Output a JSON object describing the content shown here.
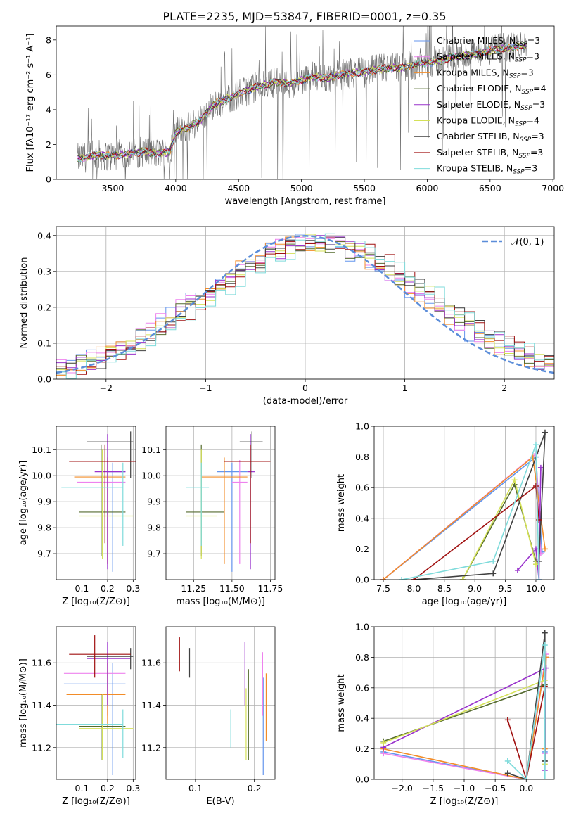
{
  "figure_title": "PLATE=2235, MJD=53847, FIBERID=0001, z=0.35",
  "legend_entries": [
    {
      "main": "Chabrier MILES, N",
      "sub": "SSP",
      "tail": "=3",
      "color": "#6495ED"
    },
    {
      "main": "Salpeter MILES, N",
      "sub": "SSP",
      "tail": "=3",
      "color": "#EE82EE"
    },
    {
      "main": "Kroupa MILES, N",
      "sub": "SSP",
      "tail": "=3",
      "color": "#F28C28"
    },
    {
      "main": "Chabrier ELODIE, N",
      "sub": "SSP",
      "tail": "=4",
      "color": "#556B2F"
    },
    {
      "main": "Salpeter ELODIE, N",
      "sub": "SSP",
      "tail": "=3",
      "color": "#9932CC"
    },
    {
      "main": "Kroupa ELODIE, N",
      "sub": "SSP",
      "tail": "=4",
      "color": "#D4E157"
    },
    {
      "main": "Chabrier STELIB, N",
      "sub": "SSP",
      "tail": "=3",
      "color": "#404040"
    },
    {
      "main": "Salpeter STELIB, N",
      "sub": "SSP",
      "tail": "=3",
      "color": "#A01010"
    },
    {
      "main": "Kroupa STELIB, N",
      "sub": "SSP",
      "tail": "=3",
      "color": "#7FDBDB"
    }
  ],
  "gauss_legend": "𝒩(0, 1)",
  "chart_data": [
    {
      "id": "spectrum",
      "type": "line",
      "xlabel": "wavelength [Angstrom, rest frame]",
      "ylabel": "Flux [fλ10⁻¹⁷ erg cm⁻² s⁻¹ A⁻¹]",
      "xlim": [
        3050,
        7010
      ],
      "ylim": [
        0,
        8.8
      ],
      "xticks": [
        3500,
        4000,
        4500,
        5000,
        5500,
        6000,
        6500,
        7000
      ],
      "yticks": [
        0,
        2,
        4,
        6,
        8
      ],
      "grid": false,
      "model_curve": {
        "x": [
          3220,
          3300,
          3400,
          3480,
          3550,
          3650,
          3750,
          3850,
          3950,
          4000,
          4100,
          4200,
          4300,
          4400,
          4500,
          4600,
          4700,
          4800,
          4900,
          5000,
          5100,
          5200,
          5300,
          5400,
          5500,
          5600,
          5700,
          5800,
          5900,
          6000,
          6100,
          6200,
          6300,
          6400,
          6500,
          6600,
          6700,
          6790
        ],
        "y": [
          1.2,
          1.3,
          1.4,
          1.35,
          1.4,
          1.5,
          1.6,
          1.5,
          1.55,
          2.7,
          3.0,
          3.4,
          4.3,
          4.6,
          4.9,
          5.2,
          5.4,
          5.6,
          5.5,
          5.7,
          5.9,
          5.8,
          6.0,
          6.1,
          6.15,
          6.3,
          6.4,
          6.4,
          6.6,
          6.7,
          6.8,
          7.0,
          7.1,
          7.2,
          7.4,
          7.5,
          7.6,
          7.7
        ]
      },
      "legend_position": "right"
    },
    {
      "id": "residuals",
      "type": "line",
      "xlabel": "(data-model)/error",
      "ylabel": "Normed distribution",
      "xlim": [
        -2.5,
        2.5
      ],
      "ylim": [
        0,
        0.425
      ],
      "xticks": [
        -2,
        -1,
        0,
        1,
        2
      ],
      "yticks": [
        0.0,
        0.1,
        0.2,
        0.3,
        0.4
      ],
      "grid": true,
      "legend_position": "top-right"
    },
    {
      "id": "age-vs-Z",
      "type": "scatter",
      "xlabel": "Z [log₁₀(Z/Z⊙)]",
      "ylabel": "age  [log₁₀(age/yr)]",
      "xlim": [
        0.0,
        0.31
      ],
      "ylim": [
        9.6,
        10.19
      ],
      "xticks": [
        0.1,
        0.2,
        0.3
      ],
      "yticks": [
        9.7,
        9.8,
        9.9,
        10.0,
        10.1
      ],
      "grid": true,
      "points": [
        {
          "s": 0,
          "x": 0.22,
          "y": 10.015,
          "xerr": [
            0.2,
            0.27
          ],
          "yerr": [
            9.63,
            10.05
          ]
        },
        {
          "s": 1,
          "x": 0.2,
          "y": 9.975,
          "xerr": [
            0.08,
            0.27
          ],
          "yerr": [
            9.66,
            10.06
          ]
        },
        {
          "s": 2,
          "x": 0.2,
          "y": 9.995,
          "xerr": [
            0.07,
            0.27
          ],
          "yerr": [
            9.66,
            10.07
          ]
        },
        {
          "s": 3,
          "x": 0.175,
          "y": 9.86,
          "xerr": [
            0.09,
            0.27
          ],
          "yerr": [
            9.69,
            10.12
          ]
        },
        {
          "s": 4,
          "x": 0.2,
          "y": 10.015,
          "xerr": [
            0.15,
            0.27
          ],
          "yerr": [
            9.64,
            10.16
          ]
        },
        {
          "s": 5,
          "x": 0.18,
          "y": 9.845,
          "xerr": [
            0.09,
            0.3
          ],
          "yerr": [
            9.68,
            10.1
          ]
        },
        {
          "s": 6,
          "x": 0.29,
          "y": 10.13,
          "xerr": [
            0.12,
            0.3
          ],
          "yerr": [
            9.99,
            10.17
          ]
        },
        {
          "s": 7,
          "x": 0.19,
          "y": 10.055,
          "xerr": [
            0.05,
            0.31
          ],
          "yerr": [
            9.74,
            10.12
          ]
        },
        {
          "s": 8,
          "x": 0.26,
          "y": 9.955,
          "xerr": [
            0.02,
            0.26
          ],
          "yerr": [
            9.73,
            10.05
          ]
        }
      ]
    },
    {
      "id": "age-vs-mass",
      "type": "scatter",
      "xlabel": "mass [log₁₀(M/M⊙)]",
      "ylabel": "",
      "xlim": [
        11.07,
        11.78
      ],
      "ylim": [
        9.6,
        10.19
      ],
      "xticks": [
        11.25,
        11.5,
        11.75
      ],
      "yticks": [
        9.7,
        9.8,
        9.9,
        10.0,
        10.1
      ],
      "grid": true,
      "points": [
        {
          "s": 0,
          "x": 11.5,
          "y": 10.015,
          "xerr": [
            11.4,
            11.6
          ],
          "yerr": [
            9.63,
            10.05
          ]
        },
        {
          "s": 1,
          "x": 11.55,
          "y": 9.975,
          "xerr": [
            11.5,
            11.6
          ],
          "yerr": [
            9.66,
            10.06
          ]
        },
        {
          "s": 2,
          "x": 11.45,
          "y": 9.995,
          "xerr": [
            11.3,
            11.6
          ],
          "yerr": [
            9.66,
            10.07
          ]
        },
        {
          "s": 3,
          "x": 11.3,
          "y": 9.86,
          "xerr": [
            11.2,
            11.45
          ],
          "yerr": [
            9.69,
            10.12
          ]
        },
        {
          "s": 4,
          "x": 11.62,
          "y": 10.015,
          "xerr": [
            11.6,
            11.65
          ],
          "yerr": [
            9.64,
            10.16
          ]
        },
        {
          "s": 5,
          "x": 11.3,
          "y": 9.845,
          "xerr": [
            11.2,
            11.4
          ],
          "yerr": [
            9.68,
            10.1
          ]
        },
        {
          "s": 6,
          "x": 11.63,
          "y": 10.13,
          "xerr": [
            11.55,
            11.7
          ],
          "yerr": [
            9.99,
            10.17
          ]
        },
        {
          "s": 7,
          "x": 11.62,
          "y": 10.055,
          "xerr": [
            11.45,
            11.75
          ],
          "yerr": [
            9.74,
            10.12
          ]
        },
        {
          "s": 8,
          "x": 11.3,
          "y": 9.955,
          "xerr": [
            11.2,
            11.35
          ],
          "yerr": [
            9.73,
            10.05
          ]
        }
      ]
    },
    {
      "id": "weight-vs-age",
      "type": "line",
      "xlabel": "age  [log₁₀(age/yr)]",
      "ylabel": "mass weight",
      "xlim": [
        7.35,
        10.3
      ],
      "ylim": [
        0,
        1.0
      ],
      "xticks": [
        7.5,
        8.0,
        8.5,
        9.0,
        9.5,
        10.0
      ],
      "yticks": [
        0.0,
        0.2,
        0.4,
        0.6,
        0.8,
        1.0
      ],
      "grid": true,
      "series": [
        {
          "s": 0,
          "x": [
            7.5,
            10.0,
            10.1
          ],
          "y": [
            0.0,
            0.8,
            0.18
          ]
        },
        {
          "s": 1,
          "x": [
            7.5,
            10.0,
            10.08
          ],
          "y": [
            0.0,
            0.82,
            0.17
          ]
        },
        {
          "s": 2,
          "x": [
            7.5,
            9.95,
            10.15
          ],
          "y": [
            0.0,
            0.8,
            0.2
          ]
        },
        {
          "s": 3,
          "x": [
            8.8,
            9.65,
            10.0
          ],
          "y": [
            0.0,
            0.62,
            0.12
          ]
        },
        {
          "s": 4,
          "x": [
            9.7,
            10.0,
            10.05,
            10.08
          ],
          "y": [
            0.06,
            0.2,
            0.0,
            0.73
          ]
        },
        {
          "s": 5,
          "x": [
            8.8,
            9.65,
            10.0
          ],
          "y": [
            0.0,
            0.65,
            0.1
          ]
        },
        {
          "s": 6,
          "x": [
            8.0,
            9.3,
            10.15,
            10.05
          ],
          "y": [
            0.0,
            0.04,
            0.96,
            0.12
          ]
        },
        {
          "s": 7,
          "x": [
            8.0,
            10.0,
            10.05
          ],
          "y": [
            0.0,
            0.61,
            0.39
          ]
        },
        {
          "s": 8,
          "x": [
            7.8,
            9.3,
            10.0,
            10.05
          ],
          "y": [
            0.0,
            0.12,
            0.88,
            0.0
          ]
        }
      ]
    },
    {
      "id": "mass-vs-Z",
      "type": "scatter",
      "xlabel": "Z [log₁₀(Z/Z⊙)]",
      "ylabel": "mass [log₁₀(M/M⊙)]",
      "xlim": [
        0.0,
        0.31
      ],
      "ylim": [
        11.05,
        11.77
      ],
      "xticks": [
        0.1,
        0.2,
        0.3
      ],
      "yticks": [
        11.2,
        11.4,
        11.6
      ],
      "grid": true,
      "points": [
        {
          "s": 0,
          "x": 0.22,
          "y": 11.5,
          "xerr": [
            0.03,
            0.27
          ],
          "yerr": [
            11.07,
            11.6
          ]
        },
        {
          "s": 1,
          "x": 0.2,
          "y": 11.55,
          "xerr": [
            0.03,
            0.27
          ],
          "yerr": [
            11.35,
            11.65
          ]
        },
        {
          "s": 2,
          "x": 0.2,
          "y": 11.45,
          "xerr": [
            0.04,
            0.27
          ],
          "yerr": [
            11.3,
            11.6
          ]
        },
        {
          "s": 3,
          "x": 0.175,
          "y": 11.3,
          "xerr": [
            0.09,
            0.27
          ],
          "yerr": [
            11.14,
            11.45
          ]
        },
        {
          "s": 4,
          "x": 0.2,
          "y": 11.62,
          "xerr": [
            0.12,
            0.29
          ],
          "yerr": [
            11.4,
            11.7
          ]
        },
        {
          "s": 5,
          "x": 0.18,
          "y": 11.29,
          "xerr": [
            0.09,
            0.3
          ],
          "yerr": [
            11.14,
            11.45
          ]
        },
        {
          "s": 6,
          "x": 0.29,
          "y": 11.63,
          "xerr": [
            0.12,
            0.3
          ],
          "yerr": [
            11.57,
            11.67
          ]
        },
        {
          "s": 7,
          "x": 0.15,
          "y": 11.64,
          "xerr": [
            0.05,
            0.29
          ],
          "yerr": [
            11.53,
            11.73
          ]
        },
        {
          "s": 8,
          "x": 0.26,
          "y": 11.31,
          "xerr": [
            0.0,
            0.26
          ],
          "yerr": [
            11.15,
            11.38
          ]
        }
      ]
    },
    {
      "id": "EBV",
      "type": "scatter",
      "xlabel": "E(B-V)",
      "ylabel": "",
      "xlim": [
        0.05,
        0.235
      ],
      "ylim": [
        11.05,
        11.77
      ],
      "xticks": [
        0.1,
        0.2
      ],
      "yticks": [
        11.2,
        11.4,
        11.6
      ],
      "grid": true,
      "points": [
        {
          "s": 0,
          "x": 0.215,
          "y": 11.5,
          "yerr": [
            11.07,
            11.53
          ]
        },
        {
          "s": 1,
          "x": 0.214,
          "y": 11.55,
          "yerr": [
            11.35,
            11.65
          ]
        },
        {
          "s": 2,
          "x": 0.22,
          "y": 11.45,
          "yerr": [
            11.23,
            11.55
          ]
        },
        {
          "s": 3,
          "x": 0.19,
          "y": 11.3,
          "yerr": [
            11.14,
            11.57
          ]
        },
        {
          "s": 4,
          "x": 0.184,
          "y": 11.62,
          "yerr": [
            11.4,
            11.7
          ]
        },
        {
          "s": 5,
          "x": 0.186,
          "y": 11.29,
          "yerr": [
            11.14,
            11.48
          ]
        },
        {
          "s": 6,
          "x": 0.09,
          "y": 11.63,
          "yerr": [
            11.53,
            11.67
          ]
        },
        {
          "s": 7,
          "x": 0.073,
          "y": 11.64,
          "yerr": [
            11.56,
            11.72
          ]
        },
        {
          "s": 8,
          "x": 0.16,
          "y": 11.31,
          "yerr": [
            11.2,
            11.38
          ]
        }
      ]
    },
    {
      "id": "weight-vs-Z",
      "type": "line",
      "xlabel": "Z [log₁₀(Z/Z⊙)]",
      "ylabel": "mass weight",
      "xlim": [
        -2.45,
        0.45
      ],
      "ylim": [
        0,
        1.0
      ],
      "xticks": [
        -2.0,
        -1.5,
        -1.0,
        -0.5,
        0.0
      ],
      "yticks": [
        0.0,
        0.2,
        0.4,
        0.6,
        0.8,
        1.0
      ],
      "grid": true,
      "series": [
        {
          "s": 0,
          "x": [
            -2.3,
            0.0,
            0.32,
            0.3
          ],
          "y": [
            0.18,
            0.0,
            0.8,
            0.18
          ]
        },
        {
          "s": 1,
          "x": [
            -2.3,
            0.0,
            0.32,
            0.3
          ],
          "y": [
            0.17,
            0.0,
            0.82,
            0.17
          ]
        },
        {
          "s": 2,
          "x": [
            -2.3,
            0.0,
            0.32,
            0.3
          ],
          "y": [
            0.2,
            0.0,
            0.8,
            0.2
          ]
        },
        {
          "s": 3,
          "x": [
            -2.3,
            0.3,
            0.3
          ],
          "y": [
            0.25,
            0.62,
            0.12
          ]
        },
        {
          "s": 4,
          "x": [
            -2.3,
            0.32,
            0.3
          ],
          "y": [
            0.21,
            0.73,
            0.06
          ]
        },
        {
          "s": 5,
          "x": [
            -2.3,
            0.3,
            0.3
          ],
          "y": [
            0.24,
            0.65,
            0.1
          ]
        },
        {
          "s": 6,
          "x": [
            -0.3,
            0.0,
            0.3,
            0.3
          ],
          "y": [
            0.04,
            0.0,
            0.96,
            0.12
          ]
        },
        {
          "s": 7,
          "x": [
            -0.3,
            0.0,
            0.3
          ],
          "y": [
            0.39,
            0.0,
            0.61
          ]
        },
        {
          "s": 8,
          "x": [
            -0.3,
            0.0,
            0.3,
            0.3
          ],
          "y": [
            0.12,
            0.0,
            0.88,
            0.0
          ]
        }
      ]
    }
  ]
}
